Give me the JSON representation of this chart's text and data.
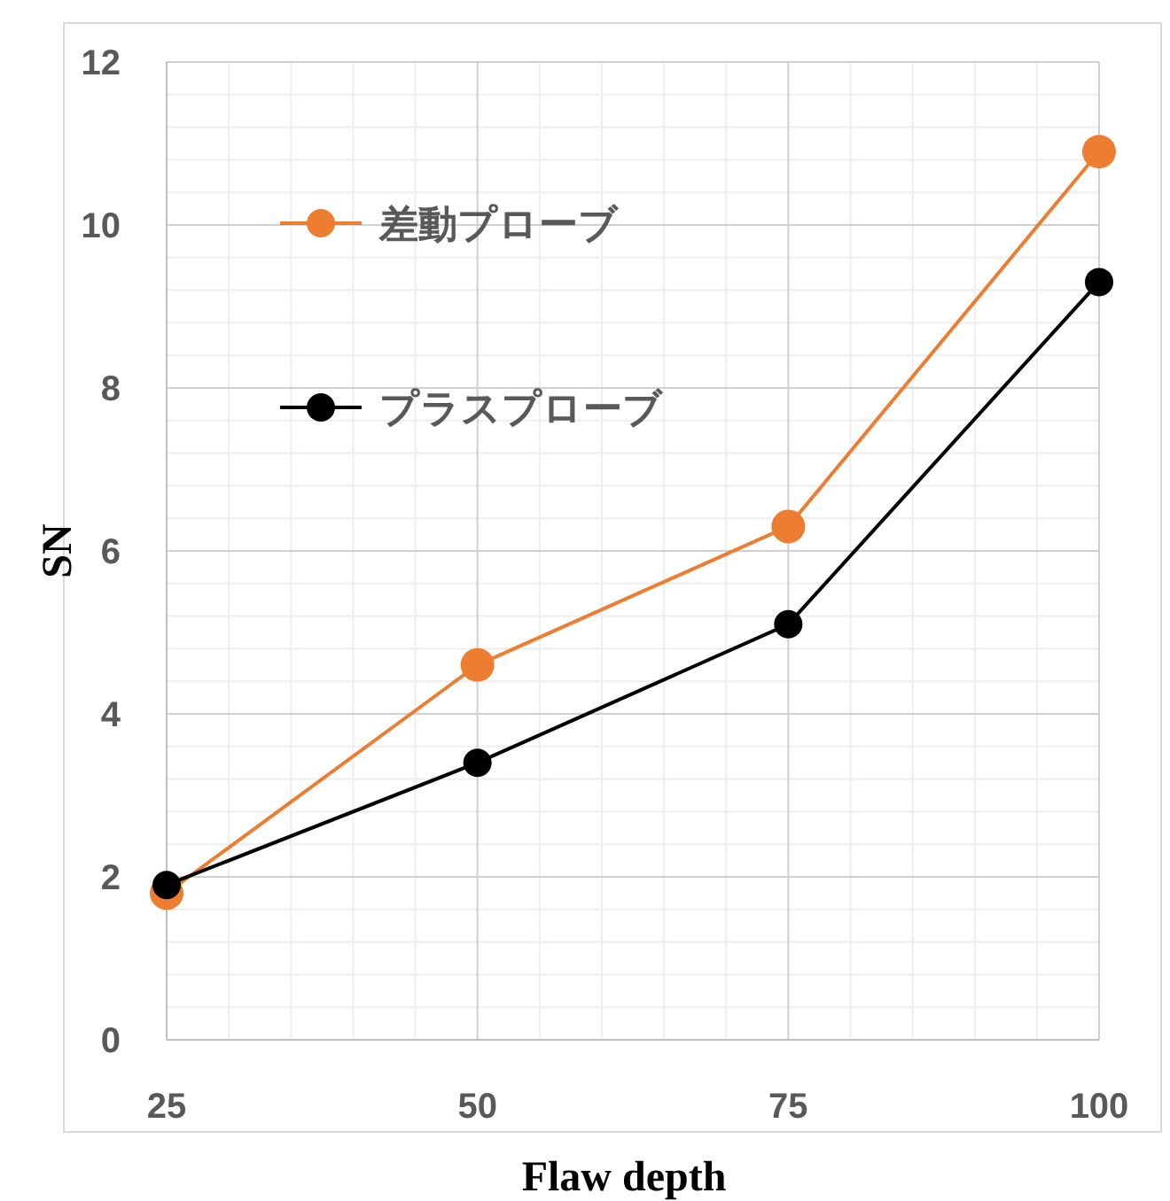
{
  "chart_data": {
    "type": "line",
    "xlabel": "Flaw depth",
    "ylabel": "SN",
    "x": [
      25,
      50,
      75,
      100
    ],
    "xlim": [
      25,
      100
    ],
    "xticks": [
      25,
      50,
      75,
      100
    ],
    "ylim": [
      0,
      12
    ],
    "yticks": [
      0,
      2,
      4,
      6,
      8,
      10,
      12
    ],
    "grid": true,
    "legend": "top left",
    "marker": "circle",
    "line_style": "solid",
    "series": [
      {
        "name": "差動プローブ",
        "color": "#ed7d31",
        "values": [
          1.8,
          4.6,
          6.3,
          10.9
        ]
      },
      {
        "name": "プラスプローブ",
        "color": "#000000",
        "values": [
          1.9,
          3.4,
          5.1,
          9.3
        ]
      }
    ]
  }
}
